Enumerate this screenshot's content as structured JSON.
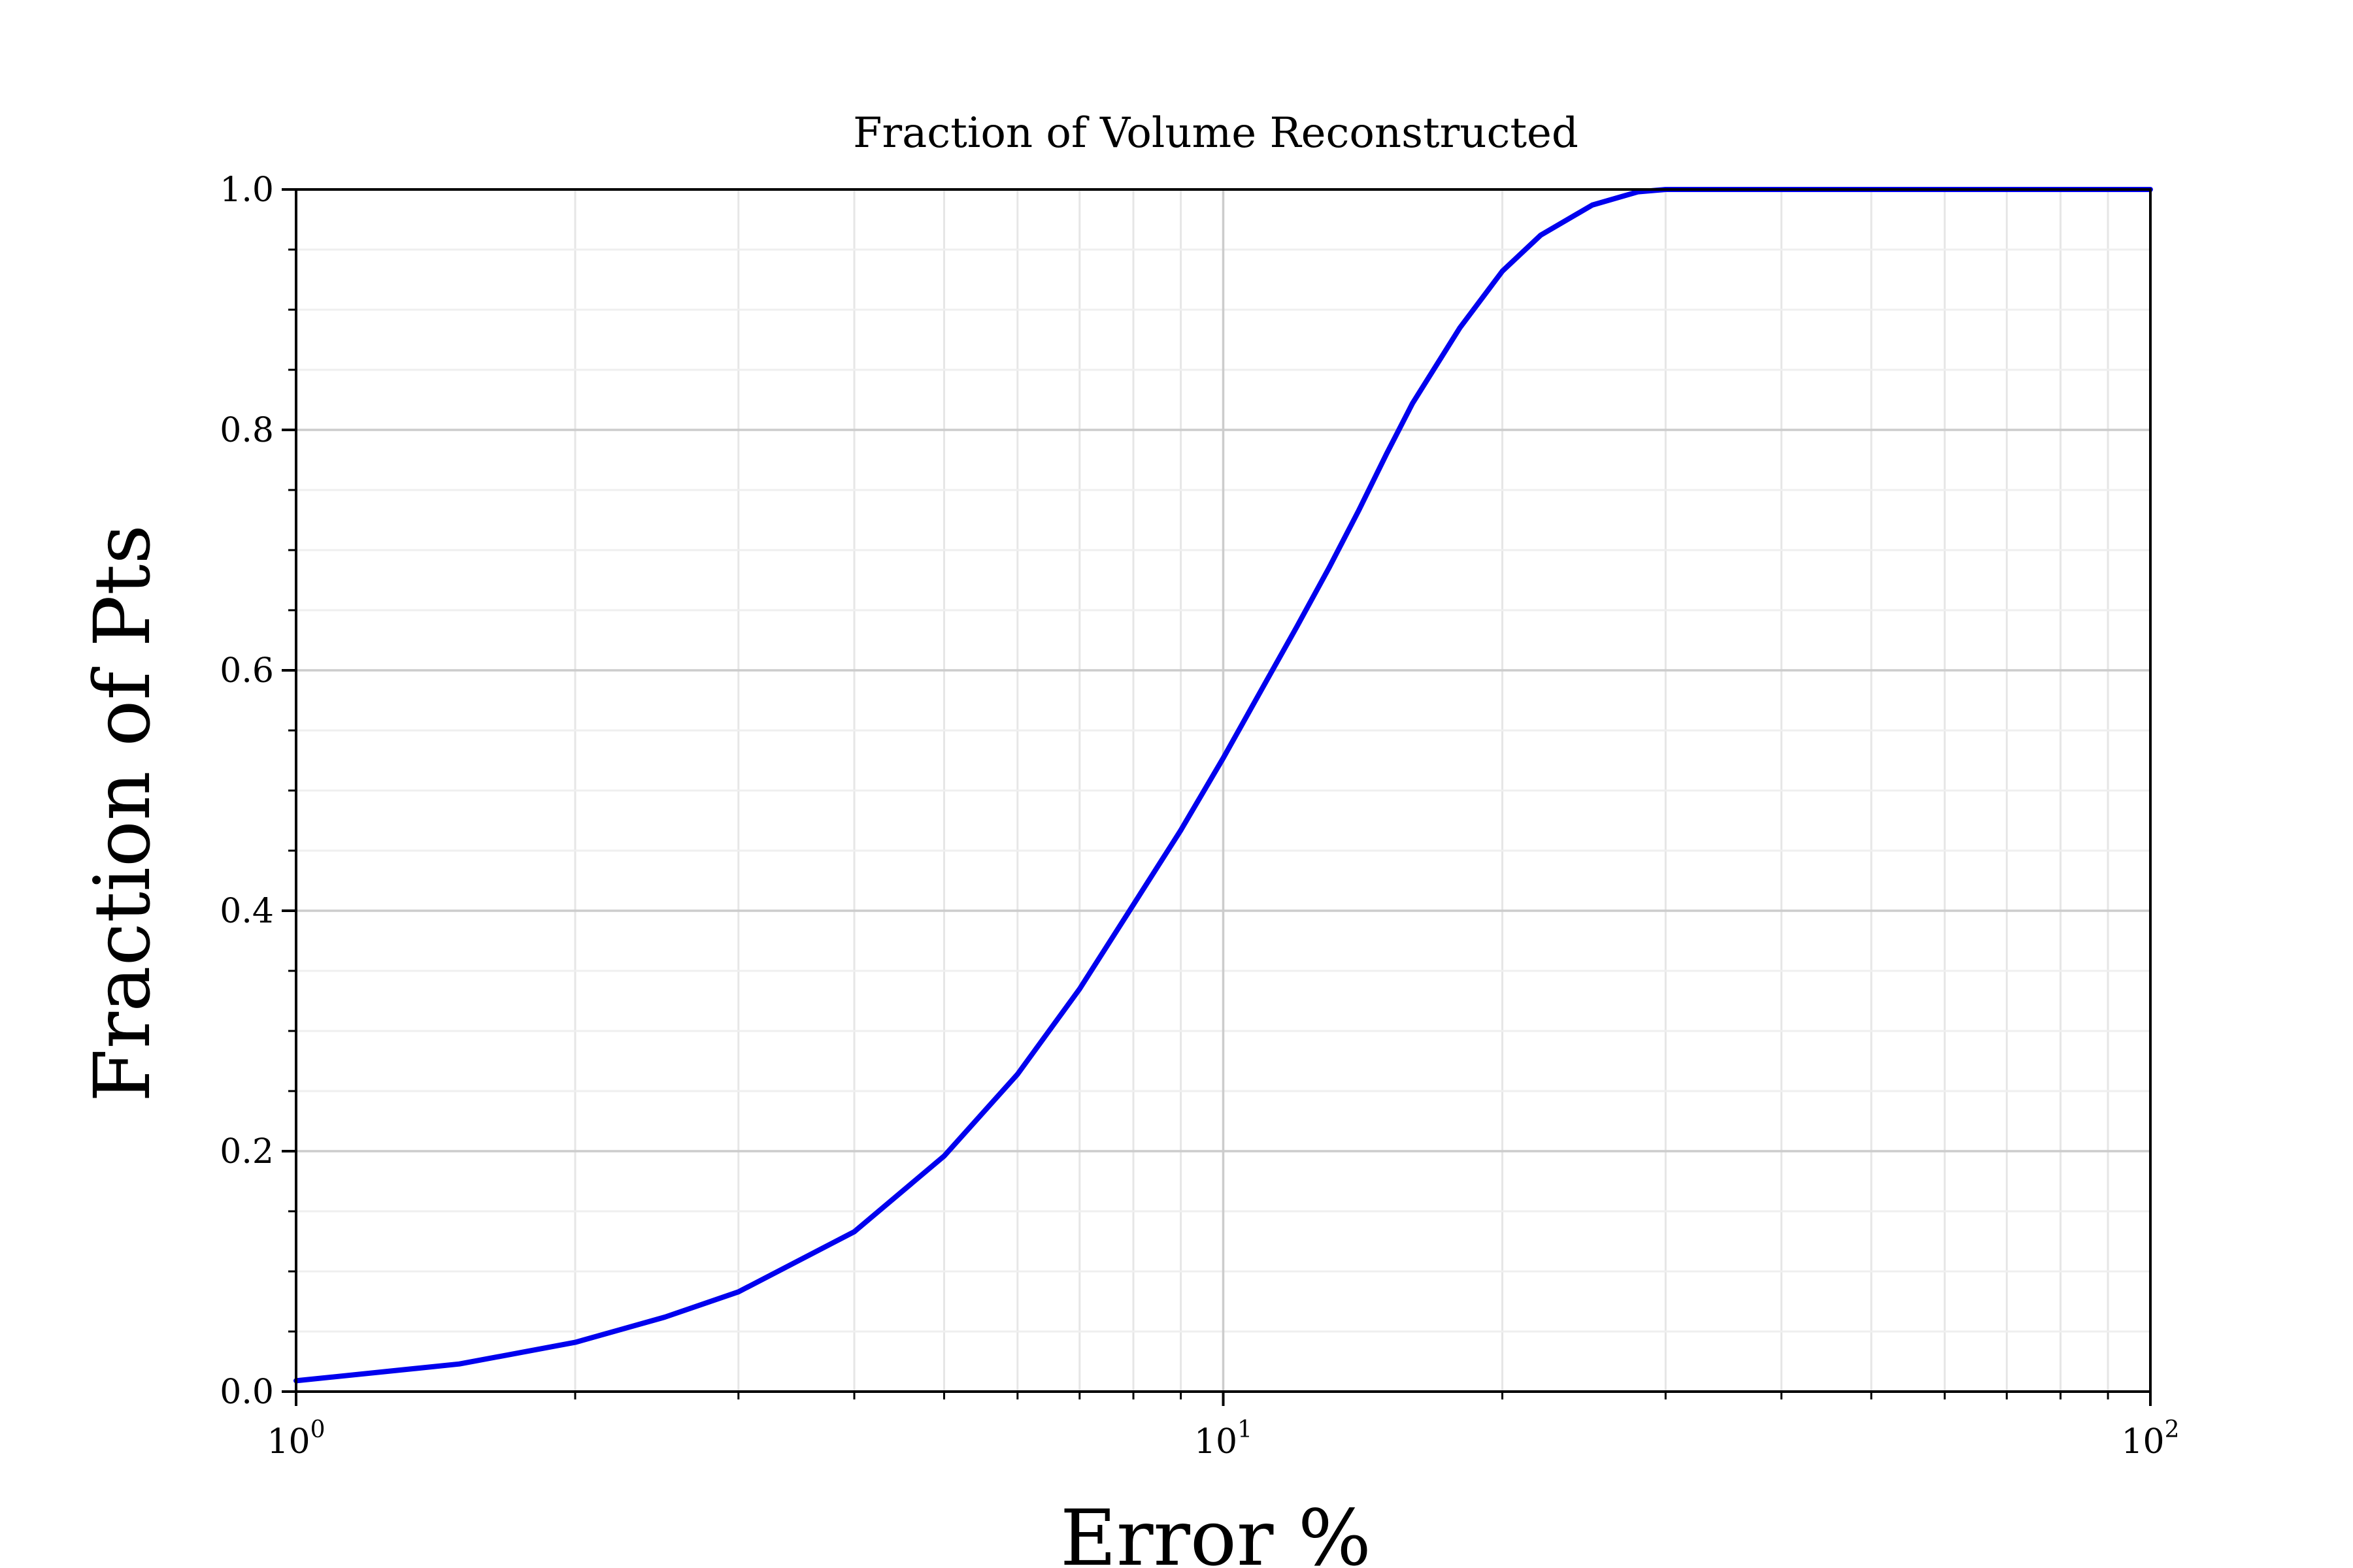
{
  "chart_data": {
    "type": "line",
    "title": "Fraction of Volume Reconstructed",
    "xlabel": "Error %",
    "ylabel": "Fraction of Pts",
    "xscale": "log",
    "xlim": [
      1,
      100
    ],
    "ylim": [
      0,
      1.0
    ],
    "grid": true,
    "x_ticks": [
      {
        "base": "10",
        "exp": "0",
        "value": 1
      },
      {
        "base": "10",
        "exp": "1",
        "value": 10
      },
      {
        "base": "10",
        "exp": "2",
        "value": 100
      }
    ],
    "y_ticks": [
      "0.0",
      "0.2",
      "0.4",
      "0.6",
      "0.8",
      "1.0"
    ],
    "line_color": "#0000ee",
    "series": [
      {
        "x": [
          1,
          1.5,
          2,
          2.5,
          3,
          4,
          5,
          6,
          7,
          8,
          9,
          10,
          11,
          12,
          13,
          14,
          15,
          16,
          18,
          20,
          22,
          25,
          28,
          30,
          35,
          40,
          50,
          60,
          70,
          80,
          90,
          100
        ],
        "y": [
          0.009,
          0.023,
          0.041,
          0.062,
          0.083,
          0.133,
          0.196,
          0.264,
          0.335,
          0.405,
          0.467,
          0.527,
          0.584,
          0.636,
          0.685,
          0.733,
          0.78,
          0.822,
          0.885,
          0.932,
          0.962,
          0.987,
          0.998,
          1.0,
          1.0,
          1.0,
          1.0,
          1.0,
          1.0,
          1.0,
          1.0,
          1.0
        ]
      }
    ]
  }
}
